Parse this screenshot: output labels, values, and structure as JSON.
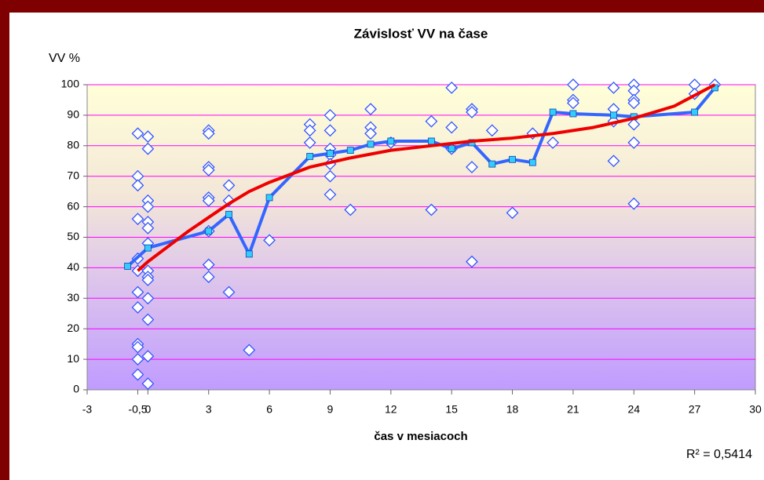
{
  "chart_data": {
    "type": "scatter",
    "title": "Závislosť VV na čase",
    "ylabel": "VV %",
    "xlabel": "čas v mesiacoch",
    "annotation": "R² = 0,5414",
    "xlim": [
      -3,
      30
    ],
    "ylim": [
      0,
      100
    ],
    "xticks": [
      -3,
      {
        "value": -0.5,
        "label": "-0,5"
      },
      0,
      3,
      6,
      9,
      12,
      15,
      18,
      21,
      24,
      27,
      30
    ],
    "yticks": [
      0,
      10,
      20,
      30,
      40,
      50,
      60,
      70,
      80,
      90,
      100
    ],
    "grid": true,
    "grid_color": "#ff00ff",
    "series": [
      {
        "type": "scatter",
        "color": "#3355ff",
        "x": [
          -0.5,
          -0.5,
          -0.5,
          -0.5,
          -0.5,
          -0.5,
          -0.5,
          -0.5,
          -0.5,
          -0.5,
          -0.5,
          -0.5,
          0,
          0,
          0,
          0,
          0,
          0,
          0,
          0,
          0,
          0,
          0,
          0,
          0,
          0,
          3,
          3,
          3,
          3,
          3,
          3,
          3,
          3,
          3,
          4,
          4,
          4,
          5,
          6,
          8,
          8,
          8,
          9,
          9,
          9,
          9,
          9,
          9,
          9,
          10,
          11,
          11,
          11,
          12,
          14,
          14,
          15,
          15,
          15,
          16,
          16,
          16,
          16,
          17,
          18,
          19,
          20,
          21,
          21,
          21,
          23,
          23,
          23,
          23,
          24,
          24,
          24,
          24,
          24,
          24,
          24,
          27,
          27,
          28
        ],
        "values": [
          84,
          70,
          67,
          56,
          43,
          39,
          32,
          27,
          15,
          14,
          10,
          5,
          83,
          79,
          62,
          60,
          55,
          53,
          48,
          39,
          37,
          36,
          30,
          23,
          11,
          2,
          85,
          84,
          73,
          72,
          63,
          62,
          52,
          41,
          37,
          67,
          62,
          32,
          13,
          49,
          87,
          85,
          81,
          90,
          85,
          79,
          77,
          74,
          70,
          64,
          59,
          92,
          86,
          84,
          81,
          88,
          59,
          99,
          86,
          79,
          92,
          91,
          73,
          42,
          85,
          58,
          84,
          81,
          100,
          95,
          94,
          99,
          92,
          88,
          75,
          100,
          98,
          95,
          94,
          87,
          81,
          61,
          100,
          97,
          100
        ]
      },
      {
        "type": "line",
        "color": "#3366ff",
        "marker_color": "#33ccff",
        "x": [
          -1,
          0,
          3,
          4,
          5,
          6,
          8,
          9,
          10,
          11,
          12,
          14,
          15,
          16,
          17,
          18,
          19,
          20,
          21,
          23,
          24,
          27,
          28
        ],
        "values": [
          40.5,
          46.5,
          52,
          57.5,
          44.5,
          63,
          76.5,
          77.5,
          78.5,
          80.5,
          81.5,
          81.5,
          79,
          81,
          74,
          75.5,
          74.5,
          91,
          90.5,
          90,
          89.5,
          91,
          99
        ]
      },
      {
        "type": "line",
        "color": "#ee0000",
        "x": [
          -0.5,
          0,
          1,
          2,
          3,
          4,
          5,
          6,
          8,
          10,
          12,
          14,
          16,
          18,
          20,
          22,
          24,
          26,
          28
        ],
        "values": [
          39,
          42,
          47,
          52,
          56.5,
          61,
          65,
          68,
          73,
          76,
          78.5,
          80,
          81.5,
          82.5,
          84,
          86,
          89,
          93,
          100
        ]
      }
    ]
  }
}
